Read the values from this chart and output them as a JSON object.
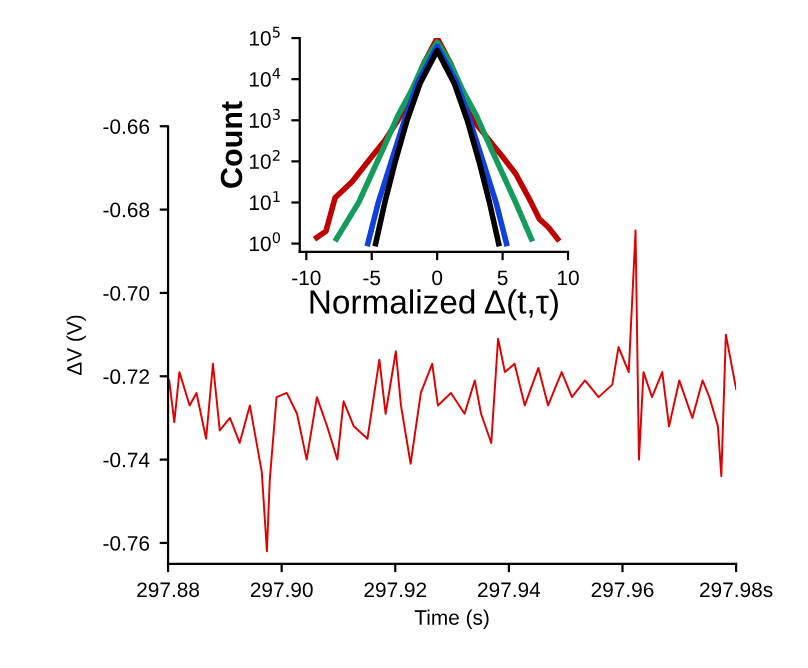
{
  "chart_data": [
    {
      "type": "line",
      "xlabel": "Time (s)",
      "ylabel": "ΔV (V)",
      "xlim": [
        297.88,
        297.98
      ],
      "ylim": [
        -0.765,
        -0.66
      ],
      "xticks": [
        {
          "value": 297.88,
          "label": "297.88"
        },
        {
          "value": 297.9,
          "label": "297.90"
        },
        {
          "value": 297.92,
          "label": "297.92"
        },
        {
          "value": 297.94,
          "label": "297.94"
        },
        {
          "value": 297.96,
          "label": "297.96"
        },
        {
          "value": 297.98,
          "label": "297.98s"
        }
      ],
      "yticks": [
        {
          "value": -0.66,
          "label": "-0.66"
        },
        {
          "value": -0.68,
          "label": "-0.68"
        },
        {
          "value": -0.7,
          "label": "-0.70"
        },
        {
          "value": -0.72,
          "label": "-0.72"
        },
        {
          "value": -0.74,
          "label": "-0.74"
        },
        {
          "value": -0.76,
          "label": "-0.76"
        }
      ],
      "grid": false,
      "legend": false,
      "series": [
        {
          "color": "#e00000",
          "x": [
            297.8802,
            297.8811,
            297.882,
            297.8838,
            297.885,
            297.8867,
            297.8879,
            297.8891,
            297.8909,
            297.8926,
            297.8944,
            297.8965,
            297.8974,
            297.8979,
            297.8991,
            297.9009,
            297.9027,
            297.9044,
            297.9062,
            297.908,
            297.9098,
            297.9109,
            297.9127,
            297.9151,
            297.9172,
            297.9183,
            297.9201,
            297.921,
            297.9227,
            297.9245,
            297.9265,
            297.9275,
            297.9298,
            297.9322,
            297.934,
            297.9351,
            297.9369,
            297.9381,
            297.9393,
            297.941,
            297.9428,
            297.9452,
            297.9469,
            297.9493,
            297.9511,
            297.9534,
            297.9558,
            297.9582,
            297.9593,
            297.9611,
            297.9623,
            297.9629,
            297.9637,
            297.9652,
            297.967,
            297.9682,
            297.97,
            297.9723,
            297.9741,
            297.9753,
            297.9768,
            297.9774,
            297.9782,
            297.98
          ],
          "values": [
            -0.721,
            -0.731,
            -0.719,
            -0.727,
            -0.724,
            -0.735,
            -0.717,
            -0.733,
            -0.73,
            -0.736,
            -0.727,
            -0.743,
            -0.762,
            -0.745,
            -0.725,
            -0.724,
            -0.729,
            -0.74,
            -0.725,
            -0.732,
            -0.74,
            -0.726,
            -0.732,
            -0.735,
            -0.716,
            -0.729,
            -0.714,
            -0.727,
            -0.741,
            -0.724,
            -0.717,
            -0.727,
            -0.724,
            -0.729,
            -0.721,
            -0.729,
            -0.736,
            -0.711,
            -0.719,
            -0.717,
            -0.727,
            -0.718,
            -0.727,
            -0.719,
            -0.725,
            -0.721,
            -0.725,
            -0.722,
            -0.713,
            -0.719,
            -0.685,
            -0.74,
            -0.719,
            -0.725,
            -0.719,
            -0.732,
            -0.721,
            -0.73,
            -0.721,
            -0.725,
            -0.732,
            -0.744,
            -0.71,
            -0.723
          ]
        }
      ]
    },
    {
      "type": "line",
      "xlabel": "Normalized Δ(t,τ)",
      "ylabel": "Count",
      "log": "y",
      "xlim": [
        -10.5,
        10
      ],
      "ylim": [
        0.63,
        100000
      ],
      "xticks": [
        -10,
        -5,
        0,
        5,
        10
      ],
      "yticks": [
        {
          "value": 1,
          "label": "10$^{0}$"
        },
        {
          "value": 10,
          "label": "10$^{1}$"
        },
        {
          "value": 100,
          "label": "10$^{2}$"
        },
        {
          "value": 1000,
          "label": "10$^{3}$"
        },
        {
          "value": 10000,
          "label": "10$^{4}$"
        },
        {
          "value": 100000,
          "label": "10$^{5}$"
        }
      ],
      "grid": false,
      "legend": false,
      "series": [
        {
          "color": "#c00000",
          "x": [
            -9.2,
            -8.5,
            -7.8,
            -6.5,
            -5,
            -4,
            -3,
            -2,
            -1,
            0,
            1,
            2,
            3,
            4,
            5,
            6,
            7,
            7.8,
            8.5,
            9.2
          ],
          "values": [
            1.4,
            2,
            13,
            32,
            130,
            320,
            1000,
            4000,
            25000,
            100000,
            25000,
            4000,
            800,
            320,
            130,
            50,
            13,
            4,
            2.5,
            1.3
          ]
        },
        {
          "color": "#139c5c",
          "x": [
            -7.7,
            -6,
            -5,
            -4,
            -3,
            -2,
            -1,
            0,
            1,
            2,
            3,
            4,
            5,
            6,
            7.2
          ],
          "values": [
            1.3,
            10,
            50,
            250,
            1300,
            5000,
            25000,
            80000,
            25000,
            5000,
            1300,
            250,
            50,
            10,
            1.3
          ]
        },
        {
          "color": "#1040e0",
          "x": [
            -5.3,
            -4.5,
            -3.5,
            -2.5,
            -1.5,
            0,
            1.5,
            2.5,
            3.5,
            4.5,
            5.3
          ],
          "values": [
            1,
            10,
            100,
            1000,
            8000,
            63000,
            8000,
            1000,
            100,
            10,
            1
          ]
        },
        {
          "color": "#000000",
          "x": [
            -4.7,
            -4,
            -3.2,
            -2.3,
            -1.3,
            0,
            1.3,
            2.3,
            3.2,
            4,
            4.7
          ],
          "values": [
            1,
            10,
            100,
            1000,
            8000,
            50000,
            8000,
            1000,
            100,
            10,
            1
          ]
        }
      ]
    }
  ]
}
